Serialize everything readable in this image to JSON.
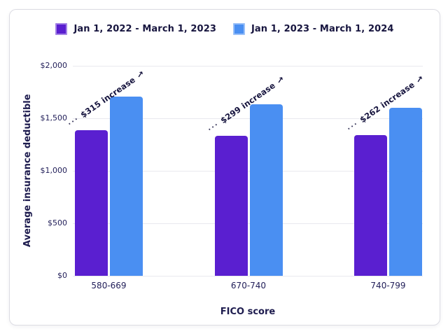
{
  "legend": {
    "items": [
      {
        "label": "Jan 1, 2022 - March 1, 2023",
        "color": "#5a1fd0"
      },
      {
        "label": "Jan 1, 2023 - March 1, 2024",
        "color": "#4a8ff2"
      }
    ]
  },
  "chart_data": {
    "type": "bar",
    "title": "",
    "xlabel": "FICO score",
    "ylabel": "Average insurance deductible",
    "categories": [
      "580-669",
      "670-740",
      "740-799"
    ],
    "series": [
      {
        "name": "Jan 1, 2022 - March 1, 2023",
        "color": "#5a1fd0",
        "values": [
          1390,
          1335,
          1338
        ]
      },
      {
        "name": "Jan 1, 2023 - March 1, 2024",
        "color": "#4a8ff2",
        "values": [
          1705,
          1634,
          1600
        ]
      }
    ],
    "annotations": [
      {
        "label": "$315 increase",
        "category": "580-669"
      },
      {
        "label": "$299 increase",
        "category": "670-740"
      },
      {
        "label": "$262 increase",
        "category": "740-799"
      }
    ],
    "ylim": [
      0,
      2000
    ],
    "yticks": [
      {
        "value": 0,
        "label": "$0"
      },
      {
        "value": 500,
        "label": "$500"
      },
      {
        "value": 1000,
        "label": "$1,000"
      },
      {
        "value": 1500,
        "label": "$1,500"
      },
      {
        "value": 2000,
        "label": "$2,000"
      }
    ],
    "grid": true,
    "legend_position": "top",
    "annotation_dots": "···",
    "annotation_arrow": "↗"
  },
  "colors": {
    "card_border": "#dcdce3",
    "gridline": "#e9e9ee",
    "text_dark": "#1d1b4e"
  }
}
